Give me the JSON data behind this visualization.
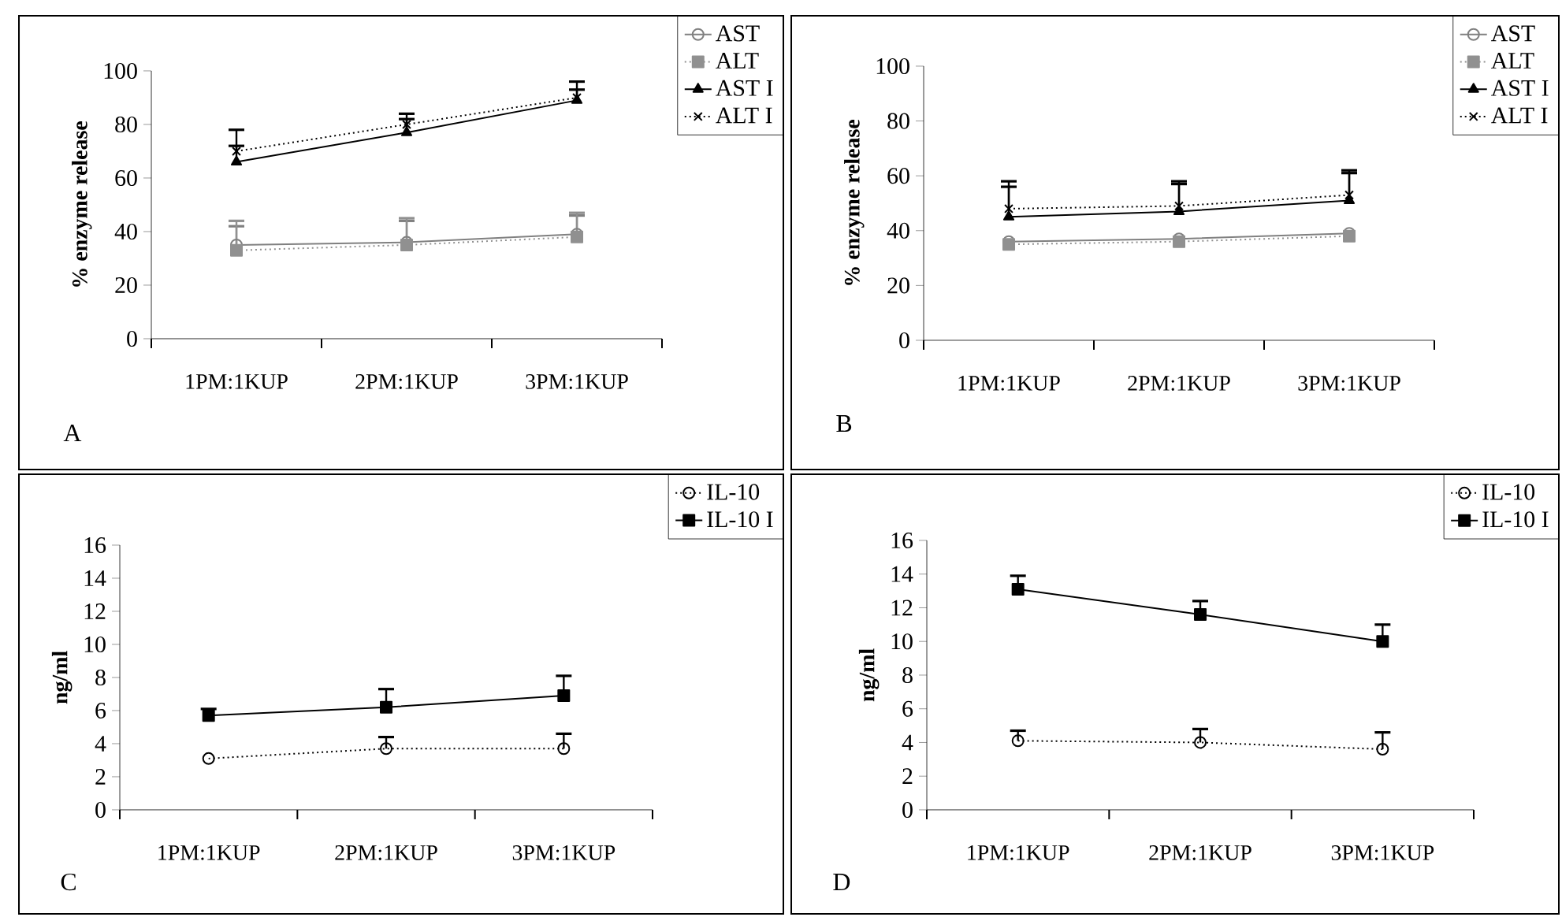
{
  "chart_data": [
    {
      "type": "line",
      "categories": [
        "1PM:1KUP",
        "2PM:1KUP",
        "3PM:1KUP"
      ],
      "ylabel": "% enzyme release",
      "ylim": [
        0,
        100
      ],
      "yticks": [
        0,
        20,
        40,
        60,
        80,
        100
      ],
      "legend": "top right",
      "annotations": [
        "A"
      ],
      "series": [
        {
          "name": "AST",
          "color": "#808080",
          "marker": "circle",
          "line_style": "solid",
          "values": [
            35,
            36,
            39
          ],
          "errors": [
            [
              35,
              42
            ],
            [
              36,
              44
            ],
            [
              39,
              46
            ]
          ]
        },
        {
          "name": "ALT",
          "color": "#909090",
          "marker": "square",
          "line_style": "dotted",
          "values": [
            33,
            35,
            38
          ],
          "errors": [
            [
              33,
              44
            ],
            [
              35,
              45
            ],
            [
              38,
              47
            ]
          ]
        },
        {
          "name": "AST I",
          "color": "#000000",
          "marker": "triangle",
          "line_style": "solid",
          "values": [
            66,
            77,
            89
          ],
          "errors": [
            [
              66,
              78
            ],
            [
              77,
              84
            ],
            [
              89,
              96
            ]
          ]
        },
        {
          "name": "ALT I",
          "color": "#000000",
          "marker": "cross",
          "line_style": "dotted",
          "values": [
            70,
            80,
            90
          ],
          "errors": [
            [
              70,
              72
            ],
            [
              80,
              82
            ],
            [
              90,
              93
            ]
          ]
        }
      ]
    },
    {
      "type": "line",
      "categories": [
        "1PM:1KUP",
        "2PM:1KUP",
        "3PM:1KUP"
      ],
      "ylabel": "% enzyme release",
      "ylim": [
        0,
        100
      ],
      "yticks": [
        0,
        20,
        40,
        60,
        80,
        100
      ],
      "legend": "top right",
      "annotations": [
        "B"
      ],
      "series": [
        {
          "name": "AST",
          "color": "#808080",
          "marker": "circle",
          "line_style": "solid",
          "values": [
            36,
            37,
            39
          ]
        },
        {
          "name": "ALT",
          "color": "#909090",
          "marker": "square",
          "line_style": "dotted",
          "values": [
            35,
            36,
            38
          ]
        },
        {
          "name": "AST I",
          "color": "#000000",
          "marker": "triangle",
          "line_style": "solid",
          "values": [
            45,
            47,
            51
          ],
          "errors": [
            [
              45,
              56
            ],
            [
              47,
              58
            ],
            [
              51,
              62
            ]
          ]
        },
        {
          "name": "ALT I",
          "color": "#000000",
          "marker": "cross",
          "line_style": "dotted",
          "values": [
            48,
            49,
            53
          ],
          "errors": [
            [
              48,
              58
            ],
            [
              49,
              57
            ],
            [
              53,
              61
            ]
          ]
        }
      ]
    },
    {
      "type": "line",
      "categories": [
        "1PM:1KUP",
        "2PM:1KUP",
        "3PM:1KUP"
      ],
      "ylabel": "ng/ml",
      "ylim": [
        0,
        16
      ],
      "yticks": [
        0,
        2,
        4,
        6,
        8,
        10,
        12,
        14,
        16
      ],
      "legend": "top right",
      "annotations": [
        "C"
      ],
      "series": [
        {
          "name": "IL-10",
          "color": "#000000",
          "marker": "circle",
          "line_style": "dotted",
          "values": [
            3.1,
            3.7,
            3.7
          ],
          "errors": [
            null,
            [
              3.7,
              4.4
            ],
            [
              3.7,
              4.6
            ]
          ]
        },
        {
          "name": "IL-10 I",
          "color": "#000000",
          "marker": "square",
          "line_style": "solid",
          "values": [
            5.7,
            6.2,
            6.9
          ],
          "errors": [
            [
              5.7,
              6.1
            ],
            [
              6.2,
              7.3
            ],
            [
              6.9,
              8.1
            ]
          ]
        }
      ]
    },
    {
      "type": "line",
      "categories": [
        "1PM:1KUP",
        "2PM:1KUP",
        "3PM:1KUP"
      ],
      "ylabel": "ng/ml",
      "ylim": [
        0,
        16
      ],
      "yticks": [
        0,
        2,
        4,
        6,
        8,
        10,
        12,
        14,
        16
      ],
      "legend": "top right",
      "annotations": [
        "D"
      ],
      "series": [
        {
          "name": "IL-10",
          "color": "#000000",
          "marker": "circle",
          "line_style": "dotted",
          "values": [
            4.1,
            4.0,
            3.6
          ],
          "errors": [
            [
              4.1,
              4.7
            ],
            [
              4.0,
              4.8
            ],
            [
              3.6,
              4.6
            ]
          ]
        },
        {
          "name": "IL-10 I",
          "color": "#000000",
          "marker": "square",
          "line_style": "solid",
          "values": [
            13.1,
            11.6,
            10.0
          ],
          "errors": [
            [
              13.1,
              13.9
            ],
            [
              11.6,
              12.4
            ],
            [
              10.0,
              11.0
            ]
          ]
        }
      ]
    }
  ]
}
